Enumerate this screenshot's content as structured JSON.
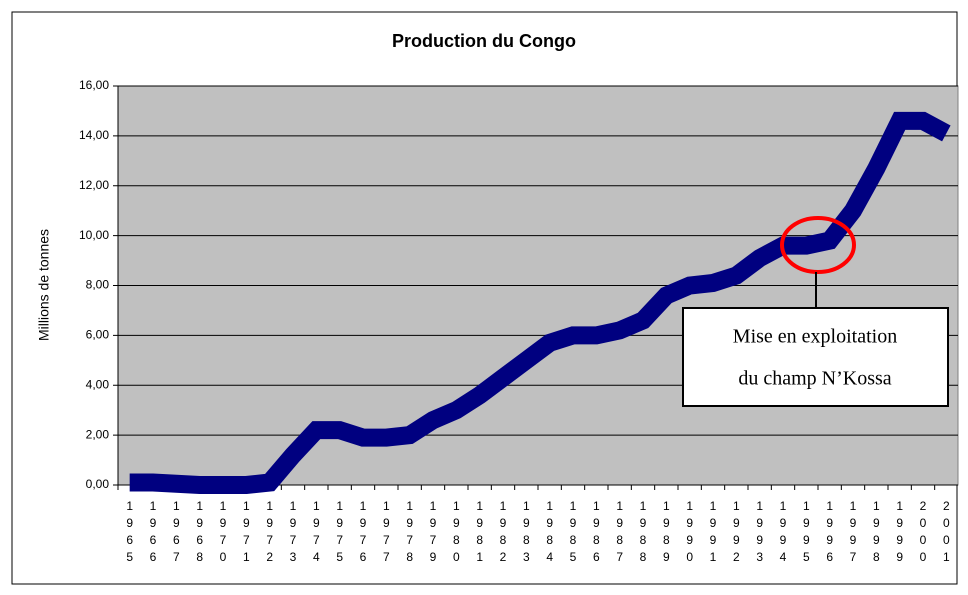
{
  "chart_data": {
    "type": "line",
    "title": "Production du Congo",
    "y_label": "Millions de tonnes",
    "categories": [
      "1965",
      "1966",
      "1967",
      "1968",
      "1970",
      "1971",
      "1972",
      "1973",
      "1974",
      "1975",
      "1976",
      "1977",
      "1978",
      "1979",
      "1980",
      "1981",
      "1982",
      "1983",
      "1984",
      "1985",
      "1986",
      "1987",
      "1988",
      "1989",
      "1990",
      "1991",
      "1992",
      "1993",
      "1994",
      "1995",
      "1996",
      "1997",
      "1998",
      "1999",
      "2000",
      "2001"
    ],
    "series": [
      {
        "name": "Production",
        "color": "#000080",
        "values": [
          0.1,
          0.1,
          0.05,
          0.0,
          0.0,
          0.0,
          0.1,
          1.2,
          2.2,
          2.2,
          1.9,
          1.9,
          2.0,
          2.6,
          3.0,
          3.6,
          4.3,
          5.0,
          5.7,
          6.0,
          6.0,
          6.2,
          6.6,
          7.6,
          8.0,
          8.1,
          8.4,
          9.1,
          9.6,
          9.6,
          9.8,
          11.0,
          12.7,
          14.6,
          14.6,
          14.1
        ]
      }
    ],
    "ylim": [
      0,
      16
    ],
    "yticks": [
      {
        "value": 0,
        "label": "0,00"
      },
      {
        "value": 2,
        "label": "2,00"
      },
      {
        "value": 4,
        "label": "4,00"
      },
      {
        "value": 6,
        "label": "6,00"
      },
      {
        "value": 8,
        "label": "8,00"
      },
      {
        "value": 10,
        "label": "10,00"
      },
      {
        "value": 12,
        "label": "12,00"
      },
      {
        "value": 14,
        "label": "14,00"
      },
      {
        "value": 16,
        "label": "16,00"
      }
    ],
    "grid": true,
    "plot_background": "#c0c0c0",
    "highlight_color": "#ff0000",
    "annotation": [
      "Mise en exploitation",
      "du champ N’Kossa"
    ]
  }
}
